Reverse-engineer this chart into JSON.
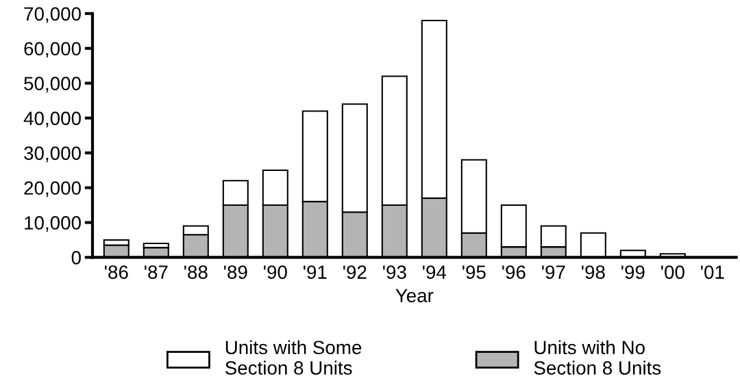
{
  "chart_data": {
    "type": "bar",
    "stacked": true,
    "xlabel": "Year",
    "categories": [
      "'86",
      "'87",
      "'88",
      "'89",
      "'90",
      "'91",
      "'92",
      "'93",
      "'94",
      "'95",
      "'96",
      "'97",
      "'98",
      "'99",
      "'00",
      "'01"
    ],
    "series": [
      {
        "name": "Units with No\nSection 8 Units",
        "color": "#b4b4b4",
        "values": [
          3500,
          2800,
          6500,
          15000,
          15000,
          16000,
          13000,
          15000,
          17000,
          7000,
          3000,
          3000,
          0,
          0,
          0,
          0
        ]
      },
      {
        "name": "Units with Some\nSection 8 Units",
        "color": "#ffffff",
        "values": [
          1500,
          1200,
          2500,
          7000,
          10000,
          26000,
          31000,
          37000,
          51000,
          21000,
          12000,
          6000,
          7000,
          2000,
          1000,
          0
        ]
      }
    ],
    "ylim": [
      0,
      70000
    ],
    "yticks": [
      {
        "value": 0,
        "label": "0"
      },
      {
        "value": 10000,
        "label": "10,000"
      },
      {
        "value": 20000,
        "label": "20,000"
      },
      {
        "value": 30000,
        "label": "30,000"
      },
      {
        "value": 40000,
        "label": "40,000"
      },
      {
        "value": 50000,
        "label": "50,000"
      },
      {
        "value": 60000,
        "label": "60,000"
      },
      {
        "value": 70000,
        "label": "70,000"
      }
    ],
    "grid": false,
    "legend": "bottom"
  }
}
